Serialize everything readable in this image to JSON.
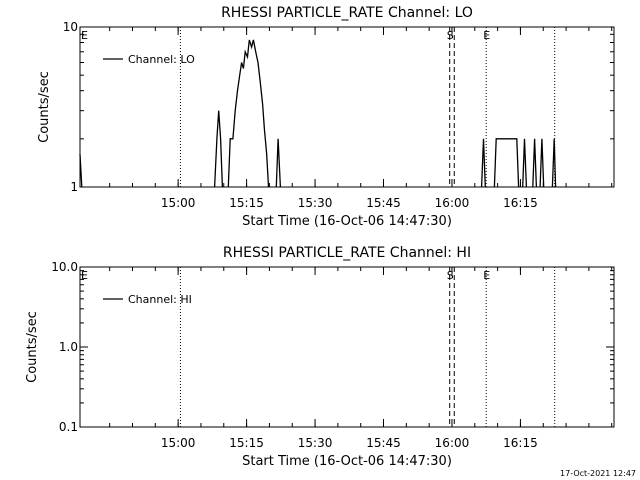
{
  "footer": {
    "timestamp": "17-Oct-2021 12:47"
  },
  "chart_data": [
    {
      "type": "line",
      "title": "RHESSI PARTICLE_RATE Channel: LO",
      "xlabel": "Start Time (16-Oct-06 14:47:30)",
      "ylabel": "Counts/sec",
      "yscale": "log",
      "xlim": [
        -6,
        111
      ],
      "ylim": [
        1,
        10
      ],
      "x_ticks": [
        15.5,
        30.5,
        45.5,
        60.5,
        75.5,
        90.5
      ],
      "x_tick_labels": [
        "15:00",
        "15:15",
        "15:30",
        "15:45",
        "16:00",
        "16:15"
      ],
      "y_ticks": [
        1,
        10
      ],
      "y_tick_labels": [
        "1",
        "10"
      ],
      "legend": {
        "label": "Channel: LO",
        "position": "top-left"
      },
      "grid": false,
      "markers": [
        {
          "label": "E",
          "x": -6,
          "style": "none"
        },
        {
          "label": "",
          "x": 16,
          "style": "dotted"
        },
        {
          "label": "S",
          "x": 75,
          "style": "dashed"
        },
        {
          "label": "",
          "x": 76,
          "style": "dashed"
        },
        {
          "label": "E",
          "x": 83,
          "style": "dotted"
        },
        {
          "label": "",
          "x": 98,
          "style": "dotted"
        }
      ],
      "series": [
        {
          "name": "Channel: LO",
          "segments": [
            [
              [
                -6,
                1.6
              ],
              [
                -5.6,
                1.0
              ]
            ],
            [
              [
                23.5,
                1.0
              ],
              [
                24.0,
                2.0
              ],
              [
                24.4,
                3.0
              ],
              [
                24.8,
                2.0
              ],
              [
                25.2,
                1.0
              ]
            ],
            [
              [
                26.5,
                1.0
              ],
              [
                26.9,
                2.0
              ],
              [
                27.5,
                2.0
              ],
              [
                28.0,
                3.0
              ],
              [
                28.5,
                4.0
              ],
              [
                29.0,
                5.0
              ],
              [
                29.4,
                6.0
              ],
              [
                29.8,
                5.5
              ],
              [
                30.2,
                7.0
              ],
              [
                30.7,
                6.5
              ],
              [
                31.1,
                8.3
              ],
              [
                31.6,
                7.5
              ],
              [
                32.0,
                8.3
              ],
              [
                32.5,
                7.0
              ],
              [
                33.0,
                6.0
              ],
              [
                33.5,
                4.5
              ],
              [
                34.0,
                3.3
              ],
              [
                34.4,
                2.3
              ],
              [
                34.9,
                1.6
              ],
              [
                35.3,
                1.0
              ]
            ],
            [
              [
                37.0,
                1.0
              ],
              [
                37.4,
                2.0
              ],
              [
                37.9,
                1.0
              ]
            ],
            [
              [
                82.0,
                1.0
              ],
              [
                82.4,
                2.0
              ],
              [
                82.8,
                1.0
              ]
            ],
            [
              [
                84.8,
                1.0
              ],
              [
                85.2,
                2.0
              ],
              [
                89.7,
                2.0
              ],
              [
                90.1,
                1.0
              ]
            ],
            [
              [
                91.0,
                1.0
              ],
              [
                91.4,
                2.0
              ],
              [
                91.8,
                1.0
              ]
            ],
            [
              [
                93.2,
                1.0
              ],
              [
                93.6,
                2.0
              ],
              [
                94.0,
                1.0
              ]
            ],
            [
              [
                94.8,
                1.0
              ],
              [
                95.2,
                2.0
              ],
              [
                95.6,
                1.0
              ]
            ],
            [
              [
                97.5,
                1.0
              ],
              [
                97.9,
                2.0
              ],
              [
                98.2,
                1.0
              ]
            ]
          ]
        }
      ]
    },
    {
      "type": "line",
      "title": "RHESSI PARTICLE_RATE Channel: HI",
      "xlabel": "Start Time (16-Oct-06 14:47:30)",
      "ylabel": "Counts/sec",
      "yscale": "log",
      "xlim": [
        -6,
        111
      ],
      "ylim": [
        0.1,
        10
      ],
      "x_ticks": [
        15.5,
        30.5,
        45.5,
        60.5,
        75.5,
        90.5
      ],
      "x_tick_labels": [
        "15:00",
        "15:15",
        "15:30",
        "15:45",
        "16:00",
        "16:15"
      ],
      "y_ticks": [
        0.1,
        1,
        10
      ],
      "y_tick_labels": [
        "0.1",
        "1.0",
        "10.0"
      ],
      "legend": {
        "label": "Channel: HI",
        "position": "top-left"
      },
      "grid": false,
      "markers": [
        {
          "label": "E",
          "x": -6,
          "style": "none"
        },
        {
          "label": "",
          "x": 16,
          "style": "dotted"
        },
        {
          "label": "S",
          "x": 75,
          "style": "dashed"
        },
        {
          "label": "",
          "x": 76,
          "style": "dashed"
        },
        {
          "label": "E",
          "x": 83,
          "style": "dotted"
        },
        {
          "label": "",
          "x": 98,
          "style": "dotted"
        }
      ],
      "series": [
        {
          "name": "Channel: HI",
          "segments": []
        }
      ]
    }
  ]
}
